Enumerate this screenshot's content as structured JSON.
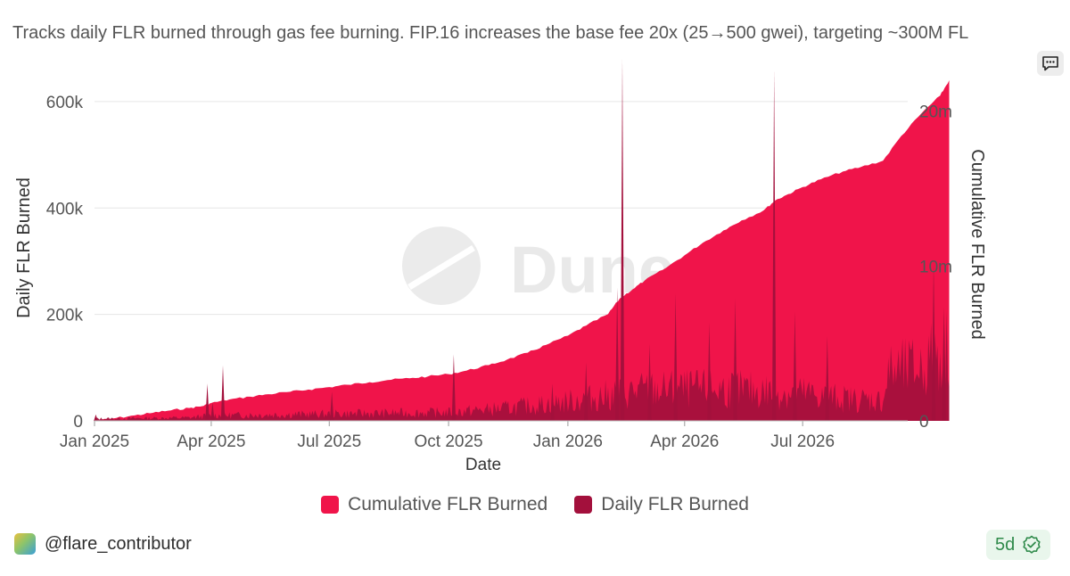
{
  "subtitle": "Tracks daily FLR burned through gas fee burning. FIP.16 increases the base fee 20x (25→500 gwei), targeting ~300M FL",
  "comment_icon": "comment-icon",
  "watermark": "Dune",
  "author": "@flare_contributor",
  "age": "5d",
  "verified_icon": "verified-check-icon",
  "colors": {
    "cumulative": "#f0144a",
    "daily": "#a3103c",
    "grid": "#e6e6e6",
    "badge_text": "#2f8a4a"
  },
  "chart_data": {
    "type": "area",
    "xlabel": "Date",
    "ylabel_left": "Daily FLR Burned",
    "ylabel_right": "Cumulative FLR Burned",
    "x_ticks": [
      "Jan 2025",
      "Apr 2025",
      "Jul 2025",
      "Oct 2025",
      "Jan 2026",
      "Apr 2026",
      "Jul 2026"
    ],
    "y_left_ticks": [
      "0",
      "200k",
      "400k",
      "600k"
    ],
    "y_right_ticks": [
      "0",
      "10m",
      "20m"
    ],
    "y_left_range": [
      0,
      640000
    ],
    "y_right_range": [
      0,
      22000000
    ],
    "legend_position": "bottom",
    "series": [
      {
        "name": "Cumulative FLR Burned",
        "axis": "right",
        "points": [
          [
            "2025-01-01",
            0
          ],
          [
            "2025-01-15",
            150000
          ],
          [
            "2025-02-01",
            350000
          ],
          [
            "2025-02-15",
            520000
          ],
          [
            "2025-03-01",
            680000
          ],
          [
            "2025-03-15",
            830000
          ],
          [
            "2025-03-25",
            950000
          ],
          [
            "2025-04-01",
            1150000
          ],
          [
            "2025-04-15",
            1380000
          ],
          [
            "2025-05-01",
            1560000
          ],
          [
            "2025-05-15",
            1720000
          ],
          [
            "2025-06-01",
            1880000
          ],
          [
            "2025-06-15",
            2020000
          ],
          [
            "2025-07-01",
            2180000
          ],
          [
            "2025-07-15",
            2330000
          ],
          [
            "2025-08-01",
            2500000
          ],
          [
            "2025-08-15",
            2640000
          ],
          [
            "2025-09-01",
            2750000
          ],
          [
            "2025-09-15",
            2870000
          ],
          [
            "2025-10-01",
            3020000
          ],
          [
            "2025-10-15",
            3250000
          ],
          [
            "2025-11-01",
            3600000
          ],
          [
            "2025-11-15",
            3950000
          ],
          [
            "2025-12-01",
            4400000
          ],
          [
            "2025-12-15",
            4900000
          ],
          [
            "2026-01-01",
            5500000
          ],
          [
            "2026-01-15",
            6150000
          ],
          [
            "2026-02-01",
            6900000
          ],
          [
            "2026-02-10",
            7900000
          ],
          [
            "2026-02-20",
            8500000
          ],
          [
            "2026-03-01",
            9050000
          ],
          [
            "2026-03-15",
            9750000
          ],
          [
            "2026-04-01",
            10700000
          ],
          [
            "2026-04-15",
            11500000
          ],
          [
            "2026-05-01",
            12300000
          ],
          [
            "2026-05-15",
            12950000
          ],
          [
            "2026-06-01",
            13600000
          ],
          [
            "2026-06-10",
            14250000
          ],
          [
            "2026-06-20",
            14650000
          ],
          [
            "2026-07-01",
            15100000
          ],
          [
            "2026-07-15",
            15600000
          ],
          [
            "2026-08-01",
            16100000
          ],
          [
            "2026-08-15",
            16400000
          ],
          [
            "2026-09-01",
            16800000
          ],
          [
            "2026-09-15",
            18400000
          ],
          [
            "2026-10-01",
            19900000
          ],
          [
            "2026-10-15",
            21000000
          ],
          [
            "2026-10-22",
            22000000
          ]
        ]
      },
      {
        "name": "Daily FLR Burned",
        "axis": "left",
        "baseline": [
          [
            "2025-01-01",
            4000
          ],
          [
            "2025-03-15",
            6000
          ],
          [
            "2025-04-01",
            10000
          ],
          [
            "2025-07-01",
            13000
          ],
          [
            "2025-10-01",
            16000
          ],
          [
            "2025-11-15",
            24000
          ],
          [
            "2026-01-01",
            36000
          ],
          [
            "2026-02-01",
            48000
          ],
          [
            "2026-03-01",
            58000
          ],
          [
            "2026-05-01",
            60000
          ],
          [
            "2026-07-01",
            52000
          ],
          [
            "2026-08-01",
            42000
          ],
          [
            "2026-09-01",
            38000
          ],
          [
            "2026-09-05",
            90000
          ],
          [
            "2026-10-01",
            100000
          ],
          [
            "2026-10-22",
            150000
          ]
        ],
        "spikes": [
          [
            "2025-01-02",
            12000
          ],
          [
            "2025-03-29",
            70000
          ],
          [
            "2025-04-02",
            35000
          ],
          [
            "2025-04-10",
            104000
          ],
          [
            "2025-07-03",
            55000
          ],
          [
            "2025-10-05",
            125000
          ],
          [
            "2025-12-20",
            70000
          ],
          [
            "2026-01-15",
            110000
          ],
          [
            "2026-02-08",
            250000
          ],
          [
            "2026-02-12",
            680000
          ],
          [
            "2026-03-05",
            145000
          ],
          [
            "2026-03-25",
            240000
          ],
          [
            "2026-04-20",
            185000
          ],
          [
            "2026-05-10",
            230000
          ],
          [
            "2026-06-09",
            660000
          ],
          [
            "2026-06-25",
            205000
          ],
          [
            "2026-07-20",
            160000
          ],
          [
            "2026-10-10",
            300000
          ],
          [
            "2026-10-18",
            200000
          ]
        ]
      }
    ]
  }
}
